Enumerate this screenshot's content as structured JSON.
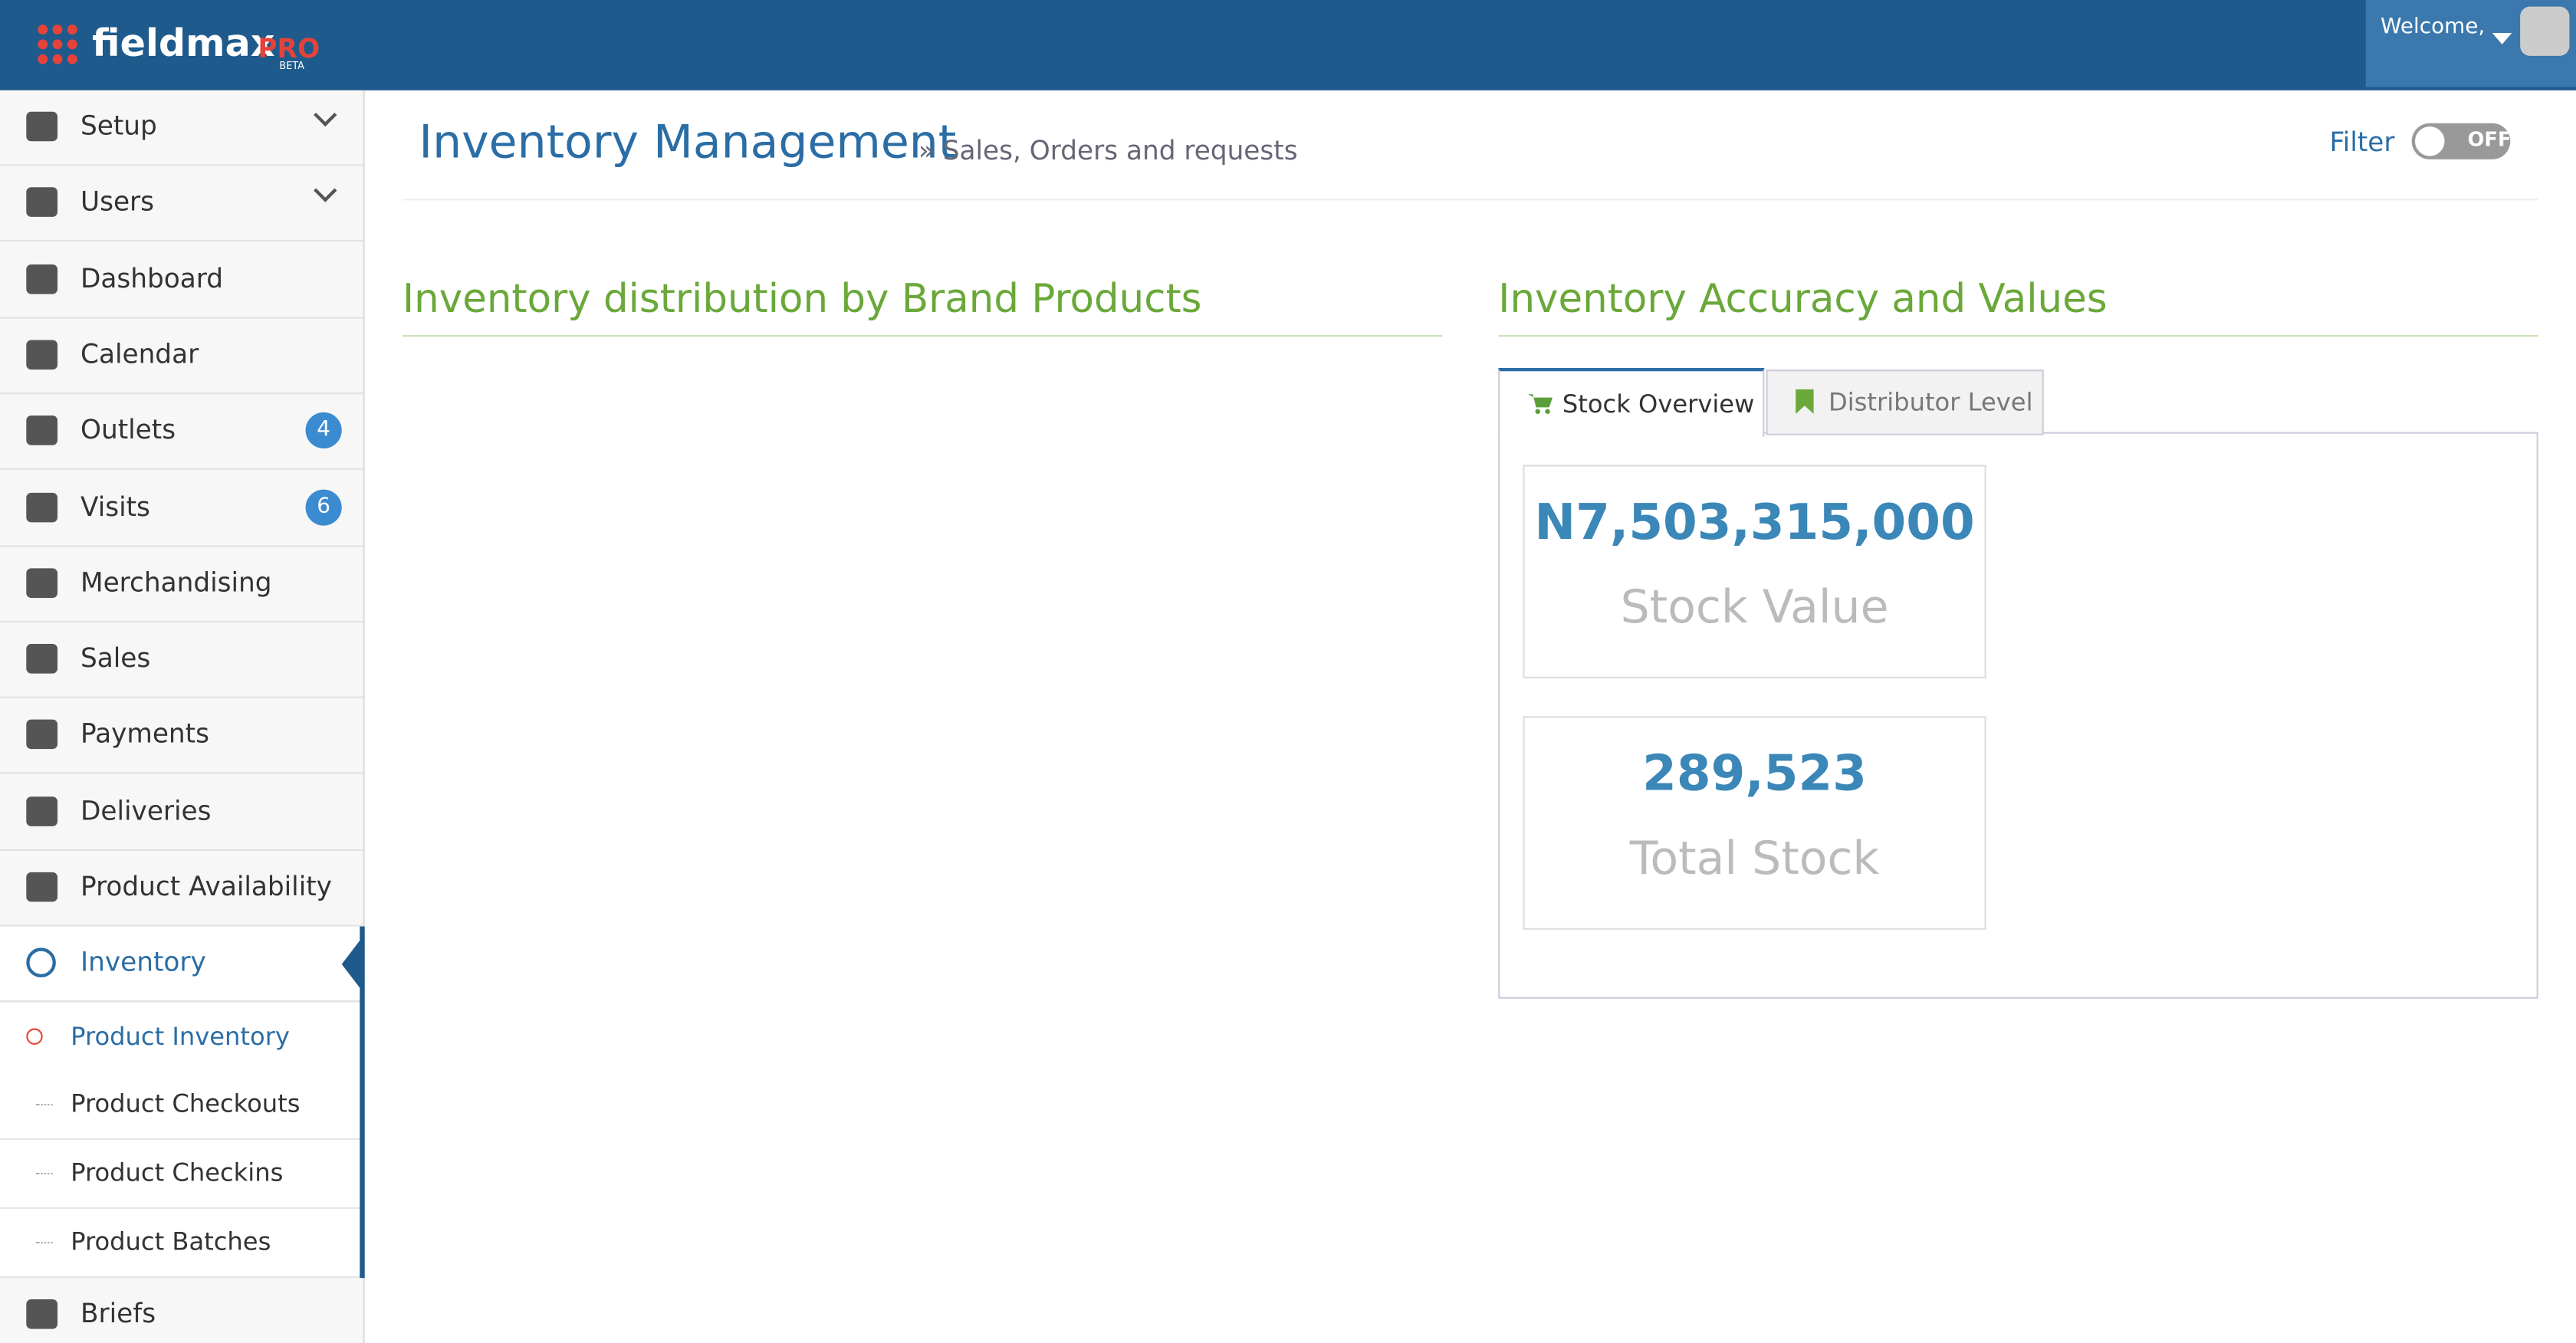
{
  "header": {
    "logo": "fieldmax",
    "logo_pro": "PRO",
    "logo_beta": "BETA",
    "welcome": "Welcome,"
  },
  "sidebar": {
    "items": [
      {
        "label": "Setup"
      },
      {
        "label": "Users"
      },
      {
        "label": "Dashboard"
      },
      {
        "label": "Calendar"
      },
      {
        "label": "Outlets",
        "badge": 4
      },
      {
        "label": "Visits",
        "badge": 6
      },
      {
        "label": "Merchandising"
      },
      {
        "label": "Sales"
      },
      {
        "label": "Payments"
      },
      {
        "label": "Deliveries"
      },
      {
        "label": "Product Availability"
      },
      {
        "label": "Inventory"
      }
    ],
    "subitems": [
      "Product Inventory",
      "Product Checkouts",
      "Product Checkins",
      "Product Batches"
    ],
    "last": "Briefs"
  },
  "main": {
    "title": "Inventory Management",
    "subtitle": "» Sales, Orders and requests",
    "filter": "Filter",
    "toggle": "OFF",
    "left_section": "Inventory distribution by Brand Products",
    "right_section": "Inventory Accuracy and Values",
    "tabs": [
      "Stock Overview",
      "Distributor Level"
    ],
    "stats": [
      {
        "value": "N7,503,315,000",
        "label": "Stock Value"
      },
      {
        "value": "289,523",
        "label": "Total Stock"
      }
    ]
  }
}
